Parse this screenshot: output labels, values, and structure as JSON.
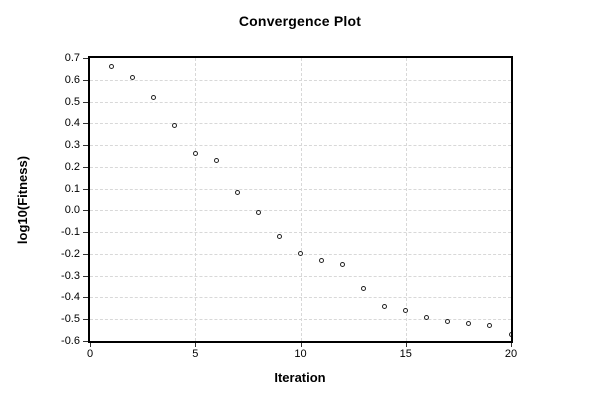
{
  "chart_data": {
    "type": "scatter",
    "title": "Convergence Plot",
    "xlabel": "Iteration",
    "ylabel": "log10(Fitness)",
    "xlim": [
      0,
      20
    ],
    "ylim": [
      -0.6,
      0.7
    ],
    "grid": true,
    "legend": "none",
    "marker": "open-circle",
    "x_tick_labels": [
      "0",
      "5",
      "10",
      "15",
      "20"
    ],
    "y_tick_labels": [
      "0.7",
      "0.6",
      "0.5",
      "0.4",
      "0.3",
      "0.2",
      "0.1",
      "0.0",
      "-0.1",
      "-0.2",
      "-0.3",
      "-0.4",
      "-0.5",
      "-0.6"
    ],
    "x": [
      1,
      2,
      3,
      4,
      5,
      6,
      7,
      8,
      9,
      10,
      11,
      12,
      13,
      14,
      15,
      16,
      17,
      18,
      19,
      20
    ],
    "y": [
      0.66,
      0.61,
      0.52,
      0.39,
      0.26,
      0.23,
      0.08,
      -0.01,
      -0.12,
      -0.2,
      -0.23,
      -0.25,
      -0.36,
      -0.44,
      -0.46,
      -0.49,
      -0.51,
      -0.52,
      -0.53,
      -0.57
    ],
    "colors": {
      "background": "#ffffff",
      "axis_frame": "#000000",
      "grid": "#d8d8d8",
      "marker_stroke": "#222222",
      "text": "#000000"
    }
  }
}
